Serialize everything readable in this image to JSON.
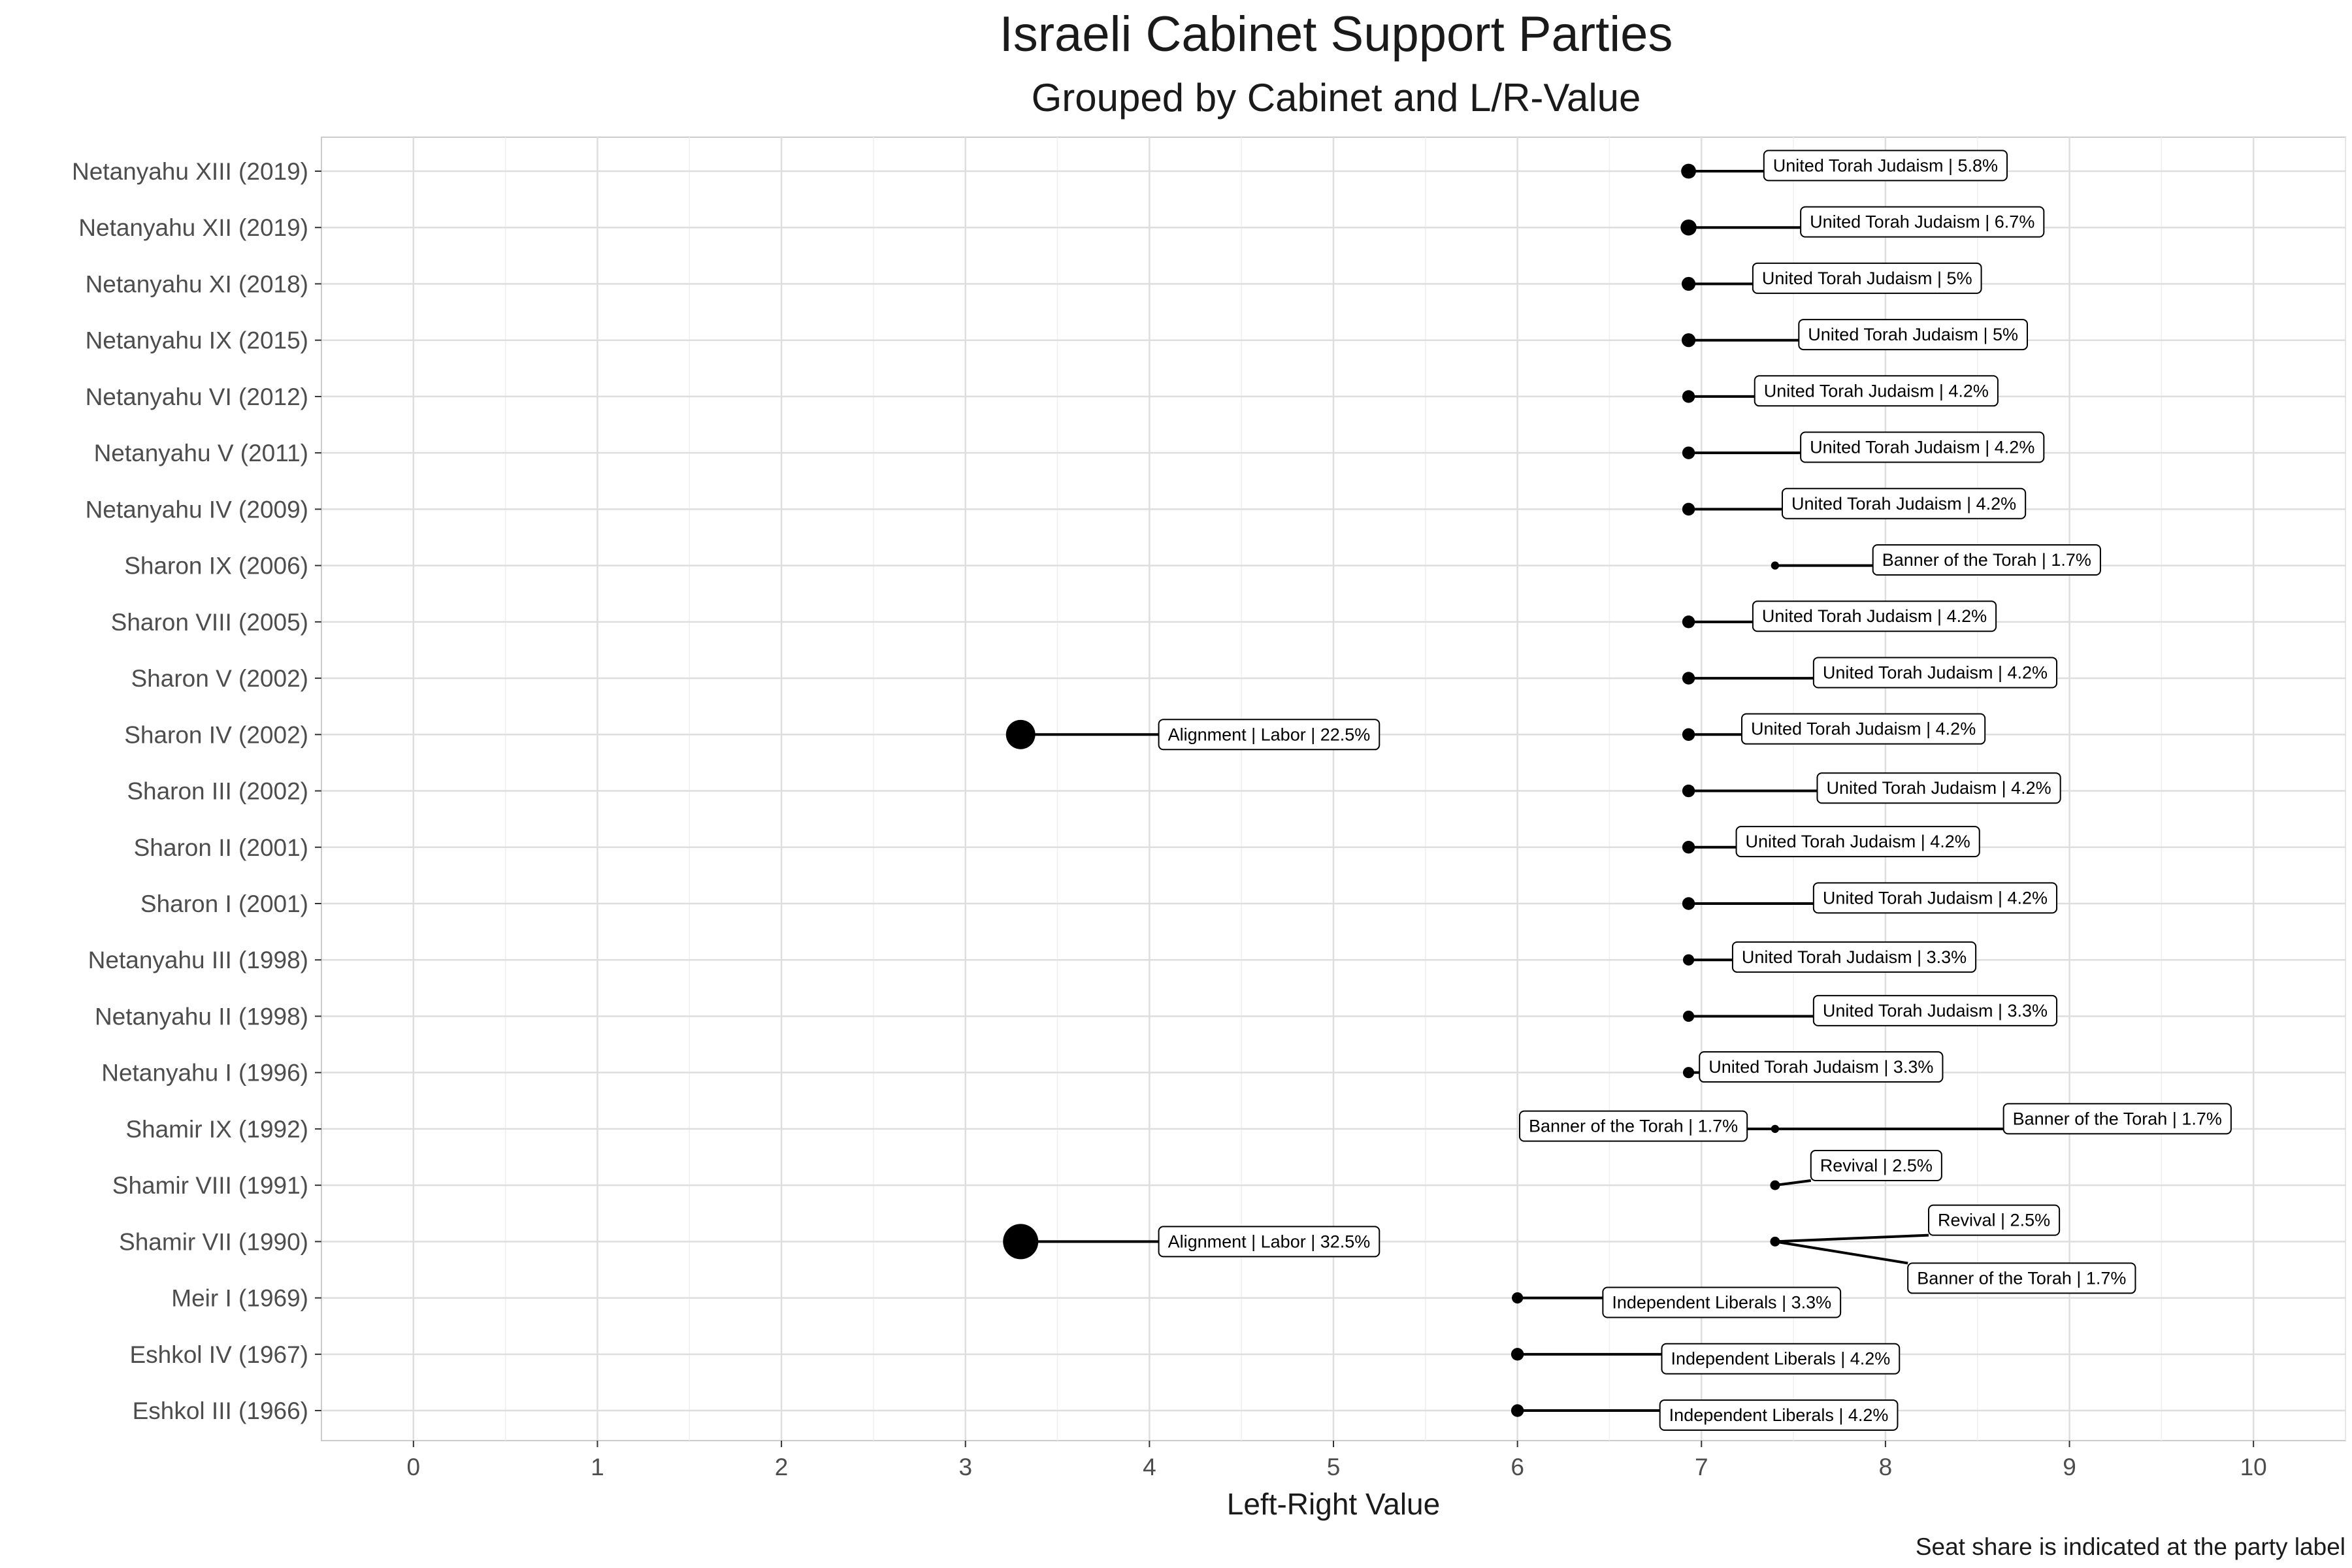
{
  "chart_data": {
    "type": "scatter",
    "title": "Israeli Cabinet Support Parties",
    "subtitle": "Grouped by Cabinet and L/R-Value",
    "xlabel": "Left-Right Value",
    "caption": "Seat share is indicated at the party label",
    "xlim": [
      -0.5,
      10.5
    ],
    "xticks": [
      "0",
      "1",
      "2",
      "3",
      "4",
      "5",
      "6",
      "7",
      "8",
      "9",
      "10"
    ],
    "grid": true,
    "legend": "none",
    "categories": [
      "Netanyahu XIII (2019)",
      "Netanyahu XII (2019)",
      "Netanyahu XI (2018)",
      "Netanyahu IX (2015)",
      "Netanyahu VI (2012)",
      "Netanyahu V (2011)",
      "Netanyahu IV (2009)",
      "Sharon IX (2006)",
      "Sharon VIII (2005)",
      "Sharon V (2002)",
      "Sharon IV (2002)",
      "Sharon III (2002)",
      "Sharon II (2001)",
      "Sharon I (2001)",
      "Netanyahu III (1998)",
      "Netanyahu II (1998)",
      "Netanyahu I (1996)",
      "Shamir IX (1992)",
      "Shamir VIII (1991)",
      "Shamir VII (1990)",
      "Meir I (1969)",
      "Eshkol IV (1967)",
      "Eshkol III (1966)"
    ],
    "points": [
      {
        "cabinet": "Netanyahu XIII (2019)",
        "x": 6.93,
        "seat_share": 5.8,
        "label": "United Torah Judaism | 5.8%",
        "label_x": 8.0,
        "label_dy": -0.1
      },
      {
        "cabinet": "Netanyahu XII (2019)",
        "x": 6.93,
        "seat_share": 6.7,
        "label": "United Torah Judaism | 6.7%",
        "label_x": 8.2,
        "label_dy": -0.1
      },
      {
        "cabinet": "Netanyahu XI (2018)",
        "x": 6.93,
        "seat_share": 5.0,
        "label": "United Torah Judaism | 5%",
        "label_x": 7.9,
        "label_dy": -0.1
      },
      {
        "cabinet": "Netanyahu IX (2015)",
        "x": 6.93,
        "seat_share": 5.0,
        "label": "United Torah Judaism | 5%",
        "label_x": 8.15,
        "label_dy": -0.1
      },
      {
        "cabinet": "Netanyahu VI (2012)",
        "x": 6.93,
        "seat_share": 4.2,
        "label": "United Torah Judaism | 4.2%",
        "label_x": 7.95,
        "label_dy": -0.1
      },
      {
        "cabinet": "Netanyahu V (2011)",
        "x": 6.93,
        "seat_share": 4.2,
        "label": "United Torah Judaism | 4.2%",
        "label_x": 8.2,
        "label_dy": -0.1
      },
      {
        "cabinet": "Netanyahu IV (2009)",
        "x": 6.93,
        "seat_share": 4.2,
        "label": "United Torah Judaism | 4.2%",
        "label_x": 8.1,
        "label_dy": -0.1
      },
      {
        "cabinet": "Sharon IX (2006)",
        "x": 7.4,
        "seat_share": 1.7,
        "label": "Banner of the Torah | 1.7%",
        "label_x": 8.55,
        "label_dy": -0.1
      },
      {
        "cabinet": "Sharon VIII (2005)",
        "x": 6.93,
        "seat_share": 4.2,
        "label": "United Torah Judaism | 4.2%",
        "label_x": 7.94,
        "label_dy": -0.1
      },
      {
        "cabinet": "Sharon V (2002)",
        "x": 6.93,
        "seat_share": 4.2,
        "label": "United Torah Judaism | 4.2%",
        "label_x": 8.27,
        "label_dy": -0.1
      },
      {
        "cabinet": "Sharon IV (2002)",
        "x": 3.3,
        "seat_share": 22.5,
        "label": "Alignment | Labor | 22.5%",
        "label_x": 4.65,
        "label_dy": 0.0
      },
      {
        "cabinet": "Sharon IV (2002)",
        "x": 6.93,
        "seat_share": 4.2,
        "label": "United Torah Judaism | 4.2%",
        "label_x": 7.88,
        "label_dy": -0.1
      },
      {
        "cabinet": "Sharon III (2002)",
        "x": 6.93,
        "seat_share": 4.2,
        "label": "United Torah Judaism | 4.2%",
        "label_x": 8.29,
        "label_dy": -0.05
      },
      {
        "cabinet": "Sharon II (2001)",
        "x": 6.93,
        "seat_share": 4.2,
        "label": "United Torah Judaism | 4.2%",
        "label_x": 7.85,
        "label_dy": -0.1
      },
      {
        "cabinet": "Sharon I (2001)",
        "x": 6.93,
        "seat_share": 4.2,
        "label": "United Torah Judaism | 4.2%",
        "label_x": 8.27,
        "label_dy": -0.1
      },
      {
        "cabinet": "Netanyahu III (1998)",
        "x": 6.93,
        "seat_share": 3.3,
        "label": "United Torah Judaism | 3.3%",
        "label_x": 7.83,
        "label_dy": -0.05
      },
      {
        "cabinet": "Netanyahu II (1998)",
        "x": 6.93,
        "seat_share": 3.3,
        "label": "United Torah Judaism | 3.3%",
        "label_x": 8.27,
        "label_dy": -0.1
      },
      {
        "cabinet": "Netanyahu I (1996)",
        "x": 6.93,
        "seat_share": 3.3,
        "label": "United Torah Judaism | 3.3%",
        "label_x": 7.65,
        "label_dy": -0.1
      },
      {
        "cabinet": "Shamir IX (1992)",
        "x": 7.4,
        "seat_share": 1.7,
        "label": "Banner of the Torah | 1.7%",
        "label_x": 6.63,
        "label_dy": -0.05
      },
      {
        "cabinet": "Shamir IX (1992)",
        "x": 7.4,
        "seat_share": 1.7,
        "label": "Banner of the Torah | 1.7%",
        "label_x": 9.26,
        "label_dy": -0.18
      },
      {
        "cabinet": "Shamir VIII (1991)",
        "x": 7.4,
        "seat_share": 2.5,
        "label": "Revival | 2.5%",
        "label_x": 7.95,
        "label_dy": -0.35
      },
      {
        "cabinet": "Shamir VII (1990)",
        "x": 7.4,
        "seat_share": 2.5,
        "label": "Revival | 2.5%",
        "label_x": 8.59,
        "label_dy": -0.38
      },
      {
        "cabinet": "Shamir VII (1990)",
        "x": 3.3,
        "seat_share": 32.5,
        "label": "Alignment | Labor | 32.5%",
        "label_x": 4.65,
        "label_dy": 0.0
      },
      {
        "cabinet": "Shamir VII (1990)",
        "x": 7.4,
        "seat_share": 1.7,
        "label": "Banner of the Torah | 1.7%",
        "label_x": 8.74,
        "label_dy": 0.65
      },
      {
        "cabinet": "Meir I (1969)",
        "x": 6.0,
        "seat_share": 3.3,
        "label": "Independent Liberals | 3.3%",
        "label_x": 7.11,
        "label_dy": 0.08
      },
      {
        "cabinet": "Eshkol IV (1967)",
        "x": 6.0,
        "seat_share": 4.2,
        "label": "Independent Liberals | 4.2%",
        "label_x": 7.43,
        "label_dy": 0.08
      },
      {
        "cabinet": "Eshkol III (1966)",
        "x": 6.0,
        "seat_share": 4.2,
        "label": "Independent Liberals | 4.2%",
        "label_x": 7.42,
        "label_dy": 0.08
      }
    ]
  }
}
